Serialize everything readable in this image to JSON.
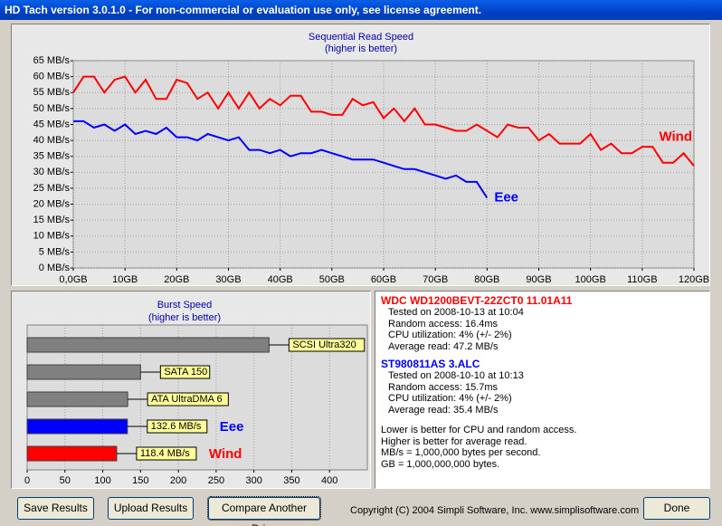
{
  "window": {
    "title": "HD Tach version 3.0.1.0  - For non-commercial or evaluation use only, see license agreement."
  },
  "chart_data": [
    {
      "type": "line",
      "title": "Sequential Read Speed",
      "subtitle": "(higher is better)",
      "x": [
        0,
        2,
        4,
        6,
        8,
        10,
        12,
        14,
        16,
        18,
        20,
        22,
        24,
        26,
        28,
        30,
        32,
        34,
        36,
        38,
        40,
        42,
        44,
        46,
        48,
        50,
        52,
        54,
        56,
        58,
        60,
        62,
        64,
        66,
        68,
        70,
        72,
        74,
        76,
        78,
        80,
        82,
        84,
        86,
        88,
        90,
        92,
        94,
        96,
        98,
        100,
        102,
        104,
        106,
        108,
        110,
        112,
        114,
        116,
        118,
        120
      ],
      "xlim": [
        0,
        120
      ],
      "xticks": [
        {
          "value": 0,
          "label": "0,0GB"
        },
        {
          "value": 10,
          "label": "10GB"
        },
        {
          "value": 20,
          "label": "20GB"
        },
        {
          "value": 30,
          "label": "30GB"
        },
        {
          "value": 40,
          "label": "40GB"
        },
        {
          "value": 50,
          "label": "50GB"
        },
        {
          "value": 60,
          "label": "60GB"
        },
        {
          "value": 70,
          "label": "70GB"
        },
        {
          "value": 80,
          "label": "80GB"
        },
        {
          "value": 90,
          "label": "90GB"
        },
        {
          "value": 100,
          "label": "100GB"
        },
        {
          "value": 110,
          "label": "110GB"
        },
        {
          "value": 120,
          "label": "120GB"
        }
      ],
      "ylim": [
        0,
        65
      ],
      "yticks": [
        {
          "value": 0,
          "label": "0 MB/s"
        },
        {
          "value": 5,
          "label": "5 MB/s"
        },
        {
          "value": 10,
          "label": "10 MB/s"
        },
        {
          "value": 15,
          "label": "15 MB/s"
        },
        {
          "value": 20,
          "label": "20 MB/s"
        },
        {
          "value": 25,
          "label": "25 MB/s"
        },
        {
          "value": 30,
          "label": "30 MB/s"
        },
        {
          "value": 35,
          "label": "35 MB/s"
        },
        {
          "value": 40,
          "label": "40 MB/s"
        },
        {
          "value": 45,
          "label": "45 MB/s"
        },
        {
          "value": 50,
          "label": "50 MB/s"
        },
        {
          "value": 55,
          "label": "55 MB/s"
        },
        {
          "value": 60,
          "label": "60 MB/s"
        },
        {
          "value": 65,
          "label": "65 MB/s"
        }
      ],
      "grid": true,
      "series": [
        {
          "name": "Wind",
          "color": "#ff0000",
          "values": [
            55,
            60,
            60,
            55,
            59,
            60,
            55,
            59,
            53,
            53,
            59,
            58,
            53,
            55,
            50,
            55,
            50,
            55,
            50,
            53,
            51,
            54,
            54,
            49,
            49,
            48,
            48,
            53,
            51,
            52,
            47,
            50,
            46,
            50,
            45,
            45,
            44,
            43,
            43,
            45,
            43,
            41,
            45,
            44,
            44,
            40,
            42,
            39,
            39,
            39,
            42,
            37,
            39,
            36,
            36,
            38,
            38,
            33,
            33,
            36,
            32
          ]
        },
        {
          "name": "Eee",
          "color": "#0000ff",
          "values": [
            46,
            46,
            44,
            45,
            43,
            45,
            42,
            43,
            42,
            44,
            41,
            41,
            40,
            42,
            41,
            40,
            41,
            37,
            37,
            36,
            37,
            35,
            36,
            36,
            37,
            36,
            35,
            34,
            34,
            34,
            33,
            32,
            31,
            31,
            30,
            29,
            28,
            29,
            27,
            27,
            22,
            null,
            null,
            null,
            null,
            null,
            null,
            null,
            null,
            null,
            null,
            null,
            null,
            null,
            null,
            null,
            null,
            null,
            null,
            null,
            null
          ]
        }
      ]
    },
    {
      "type": "hbar",
      "title": "Burst Speed",
      "subtitle": "(higher is better)",
      "categories": [
        "SCSI Ultra320",
        "SATA 150",
        "ATA UltraDMA 6",
        "Eee",
        "Wind"
      ],
      "values": [
        320,
        150,
        133,
        132.6,
        118.4
      ],
      "value_labels": [
        null,
        null,
        null,
        "132.6 MB/s",
        "118.4 MB/s"
      ],
      "colors": [
        "#808080",
        "#808080",
        "#808080",
        "#0000ff",
        "#ff0000"
      ],
      "xlim": [
        0,
        450
      ],
      "xticks": [
        0,
        50,
        100,
        150,
        200,
        250,
        300,
        350,
        400
      ],
      "grid": true
    }
  ],
  "drives": [
    {
      "name": "WDC WD1200BEVT-22ZCT0 11.01A11",
      "color": "#ff0000",
      "lines": [
        "Tested on 2008-10-13 at 10:04",
        "Random access: 16.4ms",
        "CPU utilization: 4% (+/- 2%)",
        "Average read: 47.2 MB/s"
      ]
    },
    {
      "name": "ST980811AS 3.ALC",
      "color": "#0000ff",
      "lines": [
        "Tested on 2008-10-10 at 10:13",
        "Random access: 15.7ms",
        "CPU utilization: 4% (+/- 2%)",
        "Average read: 35.4 MB/s"
      ]
    }
  ],
  "notes": [
    "Lower is better for CPU and random access.",
    "Higher is better for average read.",
    "MB/s = 1,000,000 bytes per second.",
    "GB = 1,000,000,000 bytes."
  ],
  "buttons": [
    "Save Results",
    "Upload Results",
    "Compare Another Drive",
    "Done"
  ],
  "copyright": "Copyright (C) 2004 Simpli Software, Inc. www.simplisoftware.com"
}
